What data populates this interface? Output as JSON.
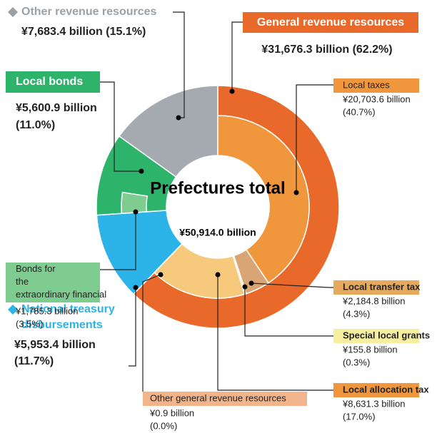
{
  "chart_data": {
    "type": "nested-donut",
    "title": "Prefectures total",
    "total": 50914.0,
    "total_label": "¥50,914.0 billion",
    "outer": {
      "categories": [
        "General revenue resources",
        "National treasury disbursements",
        "Local bonds",
        "Other revenue resources"
      ],
      "values": [
        31676.3,
        5953.4,
        5600.9,
        7683.4
      ],
      "value_labels": [
        "¥31,676.3 billion",
        "¥5,953.4 billion",
        "¥5,600.9 billion",
        "¥7,683.4 billion"
      ],
      "percent_labels": [
        "(62.2%)",
        "(11.7%)",
        "(11.0%)",
        "(15.1%)"
      ],
      "colors": [
        "#e8692a",
        "#2cb3e8",
        "#2eb36b",
        "#a4aab0"
      ]
    },
    "inner": {
      "categories": [
        "Local taxes",
        "Local transfer tax",
        "Special local grants",
        "Local allocation tax",
        "Other general revenue resources"
      ],
      "values": [
        20703.6,
        2184.8,
        155.8,
        8631.3,
        0.9
      ],
      "value_labels": [
        "¥20,703.6 billion",
        "¥2,184.8 billion",
        "¥155.8 billion",
        "¥8,631.3 billion",
        "¥0.9 billion"
      ],
      "percent_labels": [
        "(40.7%)",
        "(4.3%)",
        "(0.3%)",
        "(17.0%)",
        "(0.0%)"
      ],
      "colors": [
        "#f0963c",
        "#d9a574",
        "#e9dca0",
        "#f6c97c",
        "#f2b48a"
      ]
    },
    "sub": {
      "categories": [
        "Bonds for the extraordinary financial measures"
      ],
      "values": [
        1785.3
      ],
      "value_labels": [
        "¥1,785.3 billion"
      ],
      "percent_labels": [
        "(3.5%)"
      ],
      "colors": [
        "#7fcc90"
      ]
    }
  }
}
